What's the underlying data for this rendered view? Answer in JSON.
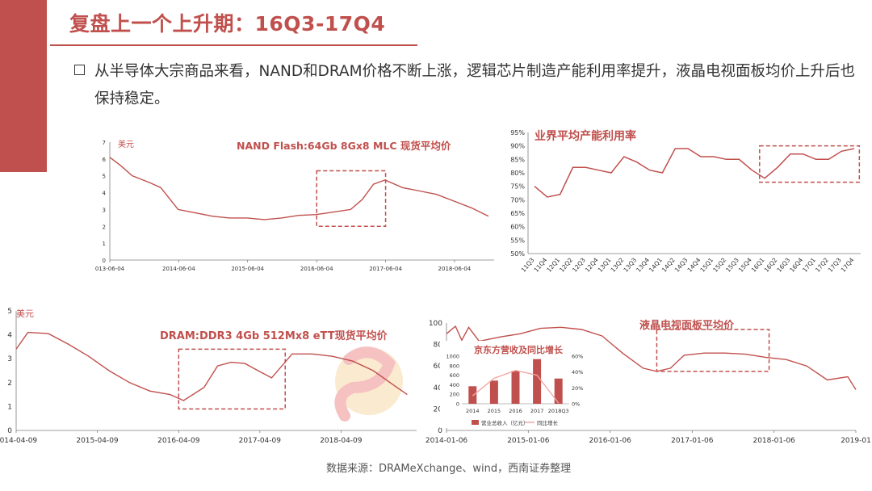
{
  "header": {
    "title": "复盘上一个上升期：16Q3-17Q4"
  },
  "bullet": {
    "text": "从半导体大宗商品来看，NAND和DRAM价格不断上涨，逻辑芯片制造产能利用率提升，液晶电视面板均价上升后也保持稳定。"
  },
  "source": "数据来源：DRAMeXchange、wind，西南证券整理",
  "colors": {
    "accent": "#c0504d",
    "grid": "#d9d9d9",
    "axis": "#7f7f7f"
  },
  "chart_data": [
    {
      "id": "nand",
      "type": "line",
      "title": "NAND Flash:64Gb 8Gx8 MLC 现货平均价",
      "ylabel": "美元",
      "ylim": [
        0,
        7
      ],
      "yticks": [
        0,
        1,
        2,
        3,
        4,
        5,
        6,
        7
      ],
      "xlim": [
        "2013-06-04",
        "2018-12-31"
      ],
      "xticks": [
        "013-06-04",
        "2014-06-04",
        "2015-06-04",
        "2016-06-04",
        "2017-06-04",
        "2018-06-04"
      ],
      "xtick_dates": [
        "2013-06-04",
        "2014-06-04",
        "2015-06-04",
        "2016-06-04",
        "2017-06-04",
        "2018-06-04"
      ],
      "series": [
        {
          "x": [
            "2013-06-04",
            "2013-08-01",
            "2013-10-01",
            "2014-01-01",
            "2014-03-01",
            "2014-06-01",
            "2014-09-01",
            "2014-12-01",
            "2015-03-01",
            "2015-06-01",
            "2015-09-01",
            "2015-12-01",
            "2016-03-01",
            "2016-06-01",
            "2016-09-01",
            "2016-12-01",
            "2017-02-01",
            "2017-04-01",
            "2017-06-01",
            "2017-09-01",
            "2017-12-01",
            "2018-03-01",
            "2018-06-01",
            "2018-09-01",
            "2018-12-01"
          ],
          "y": [
            6.1,
            5.6,
            5.0,
            4.6,
            4.3,
            3.0,
            2.8,
            2.6,
            2.5,
            2.5,
            2.4,
            2.5,
            2.65,
            2.7,
            2.85,
            3.0,
            3.6,
            4.5,
            4.75,
            4.3,
            4.1,
            3.9,
            3.5,
            3.1,
            2.6
          ]
        }
      ],
      "highlight": {
        "x0": "2016-06-04",
        "x1": "2017-06-04",
        "y0": 2.0,
        "y1": 5.3
      }
    },
    {
      "id": "utilization",
      "type": "line",
      "title": "业界平均产能利用率",
      "ylim": [
        50,
        95
      ],
      "yticks": [
        "50%",
        "55%",
        "60%",
        "65%",
        "70%",
        "75%",
        "80%",
        "85%",
        "90%",
        "95%"
      ],
      "categories": [
        "11Q3",
        "11Q4",
        "12Q1",
        "12Q2",
        "12Q3",
        "12Q4",
        "13Q1",
        "13Q2",
        "13Q3",
        "13Q4",
        "14Q1",
        "14Q2",
        "14Q3",
        "14Q4",
        "15Q1",
        "15Q2",
        "15Q3",
        "15Q4",
        "16Q1",
        "16Q2",
        "16Q3",
        "16Q4",
        "17Q1",
        "17Q2",
        "17Q3",
        "17Q4"
      ],
      "series": [
        {
          "values": [
            75,
            71,
            72,
            82,
            82,
            81,
            80,
            86,
            84,
            81,
            80,
            89,
            89,
            86,
            86,
            85,
            85,
            81,
            78,
            82,
            87,
            87,
            85,
            85,
            88,
            89
          ]
        }
      ],
      "highlight": {
        "i0": 17.6,
        "i1": 25.4,
        "y0": 76.5,
        "y1": 90
      }
    },
    {
      "id": "dram",
      "type": "line",
      "title": "DRAM:DDR3 4Gb 512Mx8 eTT现货平均价",
      "ylabel": "美元",
      "ylim": [
        0,
        5
      ],
      "yticks": [
        0,
        1,
        2,
        3,
        4,
        5
      ],
      "xlim": [
        "2014-04-09",
        "2019-03-15"
      ],
      "xticks": [
        "2014-04-09",
        "2015-04-09",
        "2016-04-09",
        "2017-04-09",
        "2018-04-09"
      ],
      "series": [
        {
          "x": [
            "2014-04-09",
            "2014-06-01",
            "2014-09-01",
            "2014-12-01",
            "2015-03-01",
            "2015-06-01",
            "2015-09-01",
            "2015-12-01",
            "2016-03-01",
            "2016-05-01",
            "2016-08-01",
            "2016-10-01",
            "2016-12-01",
            "2017-02-01",
            "2017-04-01",
            "2017-06-01",
            "2017-09-01",
            "2017-12-01",
            "2018-03-01",
            "2018-06-01",
            "2018-09-01",
            "2018-12-01",
            "2019-02-01"
          ],
          "y": [
            3.4,
            4.1,
            4.05,
            3.6,
            3.1,
            2.5,
            2.0,
            1.65,
            1.5,
            1.25,
            1.8,
            2.7,
            2.85,
            2.8,
            2.5,
            2.2,
            3.2,
            3.2,
            3.1,
            2.9,
            2.5,
            1.9,
            1.5
          ]
        }
      ],
      "highlight": {
        "x0": "2016-04-09",
        "x1": "2017-08-01",
        "y0": 0.9,
        "y1": 3.4
      }
    },
    {
      "id": "lcd",
      "type": "line",
      "title": "液晶电视面板平均价",
      "ylim": [
        0,
        100
      ],
      "yticks": [
        0,
        20,
        40,
        60,
        80,
        100
      ],
      "xlim": [
        "2014-01-06",
        "2019-01-06"
      ],
      "xticks": [
        "2014-01-06",
        "2015-01-06",
        "2016-01-06",
        "2017-01-06",
        "2018-01-06",
        "2019-01"
      ],
      "xtick_dates": [
        "2014-01-06",
        "2015-01-06",
        "2016-01-06",
        "2017-01-06",
        "2018-01-06",
        "2019-01-06"
      ],
      "series": [
        {
          "x": [
            "2014-01-06",
            "2014-02-15",
            "2014-03-15",
            "2014-04-15",
            "2014-06-01",
            "2014-09-01",
            "2014-12-01",
            "2015-03-01",
            "2015-06-01",
            "2015-09-01",
            "2015-12-01",
            "2016-03-01",
            "2016-06-01",
            "2016-08-01",
            "2016-10-01",
            "2016-12-01",
            "2017-03-01",
            "2017-06-01",
            "2017-09-01",
            "2017-12-01",
            "2018-03-01",
            "2018-06-01",
            "2018-09-01",
            "2018-12-01",
            "2019-01-06"
          ],
          "y": [
            90,
            97,
            84,
            96,
            83,
            87,
            90,
            95,
            96,
            94,
            88,
            72,
            58,
            55,
            58,
            70,
            72,
            72,
            71,
            68,
            66,
            60,
            47,
            50,
            38
          ]
        }
      ],
      "highlight": {
        "x0": "2016-08-01",
        "x1": "2017-12-15",
        "y0": 55,
        "y1": 94
      }
    },
    {
      "id": "boe",
      "type": "bar",
      "title": "京东方营收及同比增长",
      "categories": [
        "2014",
        "2015",
        "2016",
        "2017",
        "2018Q3"
      ],
      "ylim": [
        0,
        1000
      ],
      "yticks": [
        0,
        200,
        400,
        600,
        800,
        1000
      ],
      "y2lim": [
        0,
        60
      ],
      "y2ticks": [
        "0%",
        "20%",
        "40%",
        "60%"
      ],
      "series": [
        {
          "name": "营业总收入（亿元）",
          "values": [
            368,
            486,
            689,
            938,
            530
          ]
        },
        {
          "name": "同比增长",
          "values": [
            10,
            32,
            42,
            36,
            1
          ]
        }
      ]
    }
  ]
}
